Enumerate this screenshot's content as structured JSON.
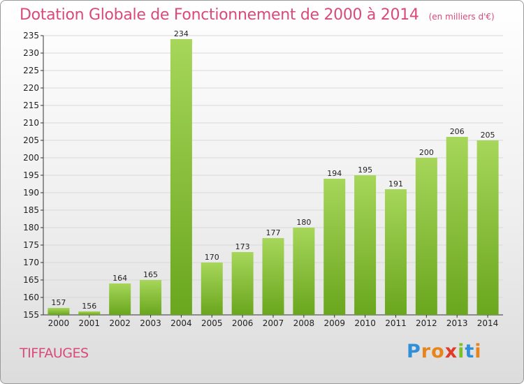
{
  "chart_data": {
    "type": "bar",
    "title": "Dotation Globale de Fonctionnement de 2000 à 2014",
    "subtitle": "(en milliers d'€)",
    "categories": [
      "2000",
      "2001",
      "2002",
      "2003",
      "2004",
      "2005",
      "2006",
      "2007",
      "2008",
      "2009",
      "2010",
      "2011",
      "2012",
      "2013",
      "2014"
    ],
    "values": [
      157,
      156,
      164,
      165,
      234,
      170,
      173,
      177,
      180,
      194,
      195,
      191,
      200,
      206,
      205
    ],
    "ylim": [
      155,
      235
    ],
    "yticks": [
      155,
      160,
      165,
      170,
      175,
      180,
      185,
      190,
      195,
      200,
      205,
      210,
      215,
      220,
      225,
      230,
      235
    ],
    "grid": true,
    "colors": {
      "bar_light": "#a6d65a",
      "bar_dark": "#6aa61e",
      "grid": "#d8d8d8"
    }
  },
  "footer": {
    "commune": "TIFFAUGES",
    "logo": "Proxiti"
  }
}
